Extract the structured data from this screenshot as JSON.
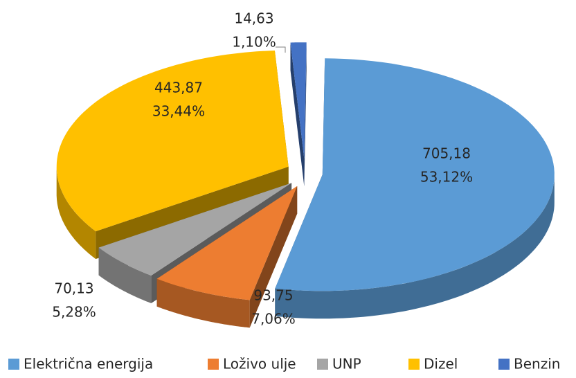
{
  "chart_data": {
    "type": "pie",
    "categories": [
      "Električna energija",
      "Loživo ulje",
      "UNP",
      "Dizel",
      "Benzin"
    ],
    "values": [
      705.18,
      93.75,
      70.13,
      443.87,
      14.63
    ],
    "value_labels": [
      "705,18",
      "93,75",
      "70,13",
      "443,87",
      "14,63"
    ],
    "percent_labels": [
      "53,12%",
      "7,06%",
      "5,28%",
      "33,44%",
      "1,10%"
    ],
    "colors": [
      "#5b9bd5",
      "#ed7d31",
      "#a5a5a5",
      "#ffc000",
      "#4472c4"
    ],
    "legend": "bottom"
  }
}
